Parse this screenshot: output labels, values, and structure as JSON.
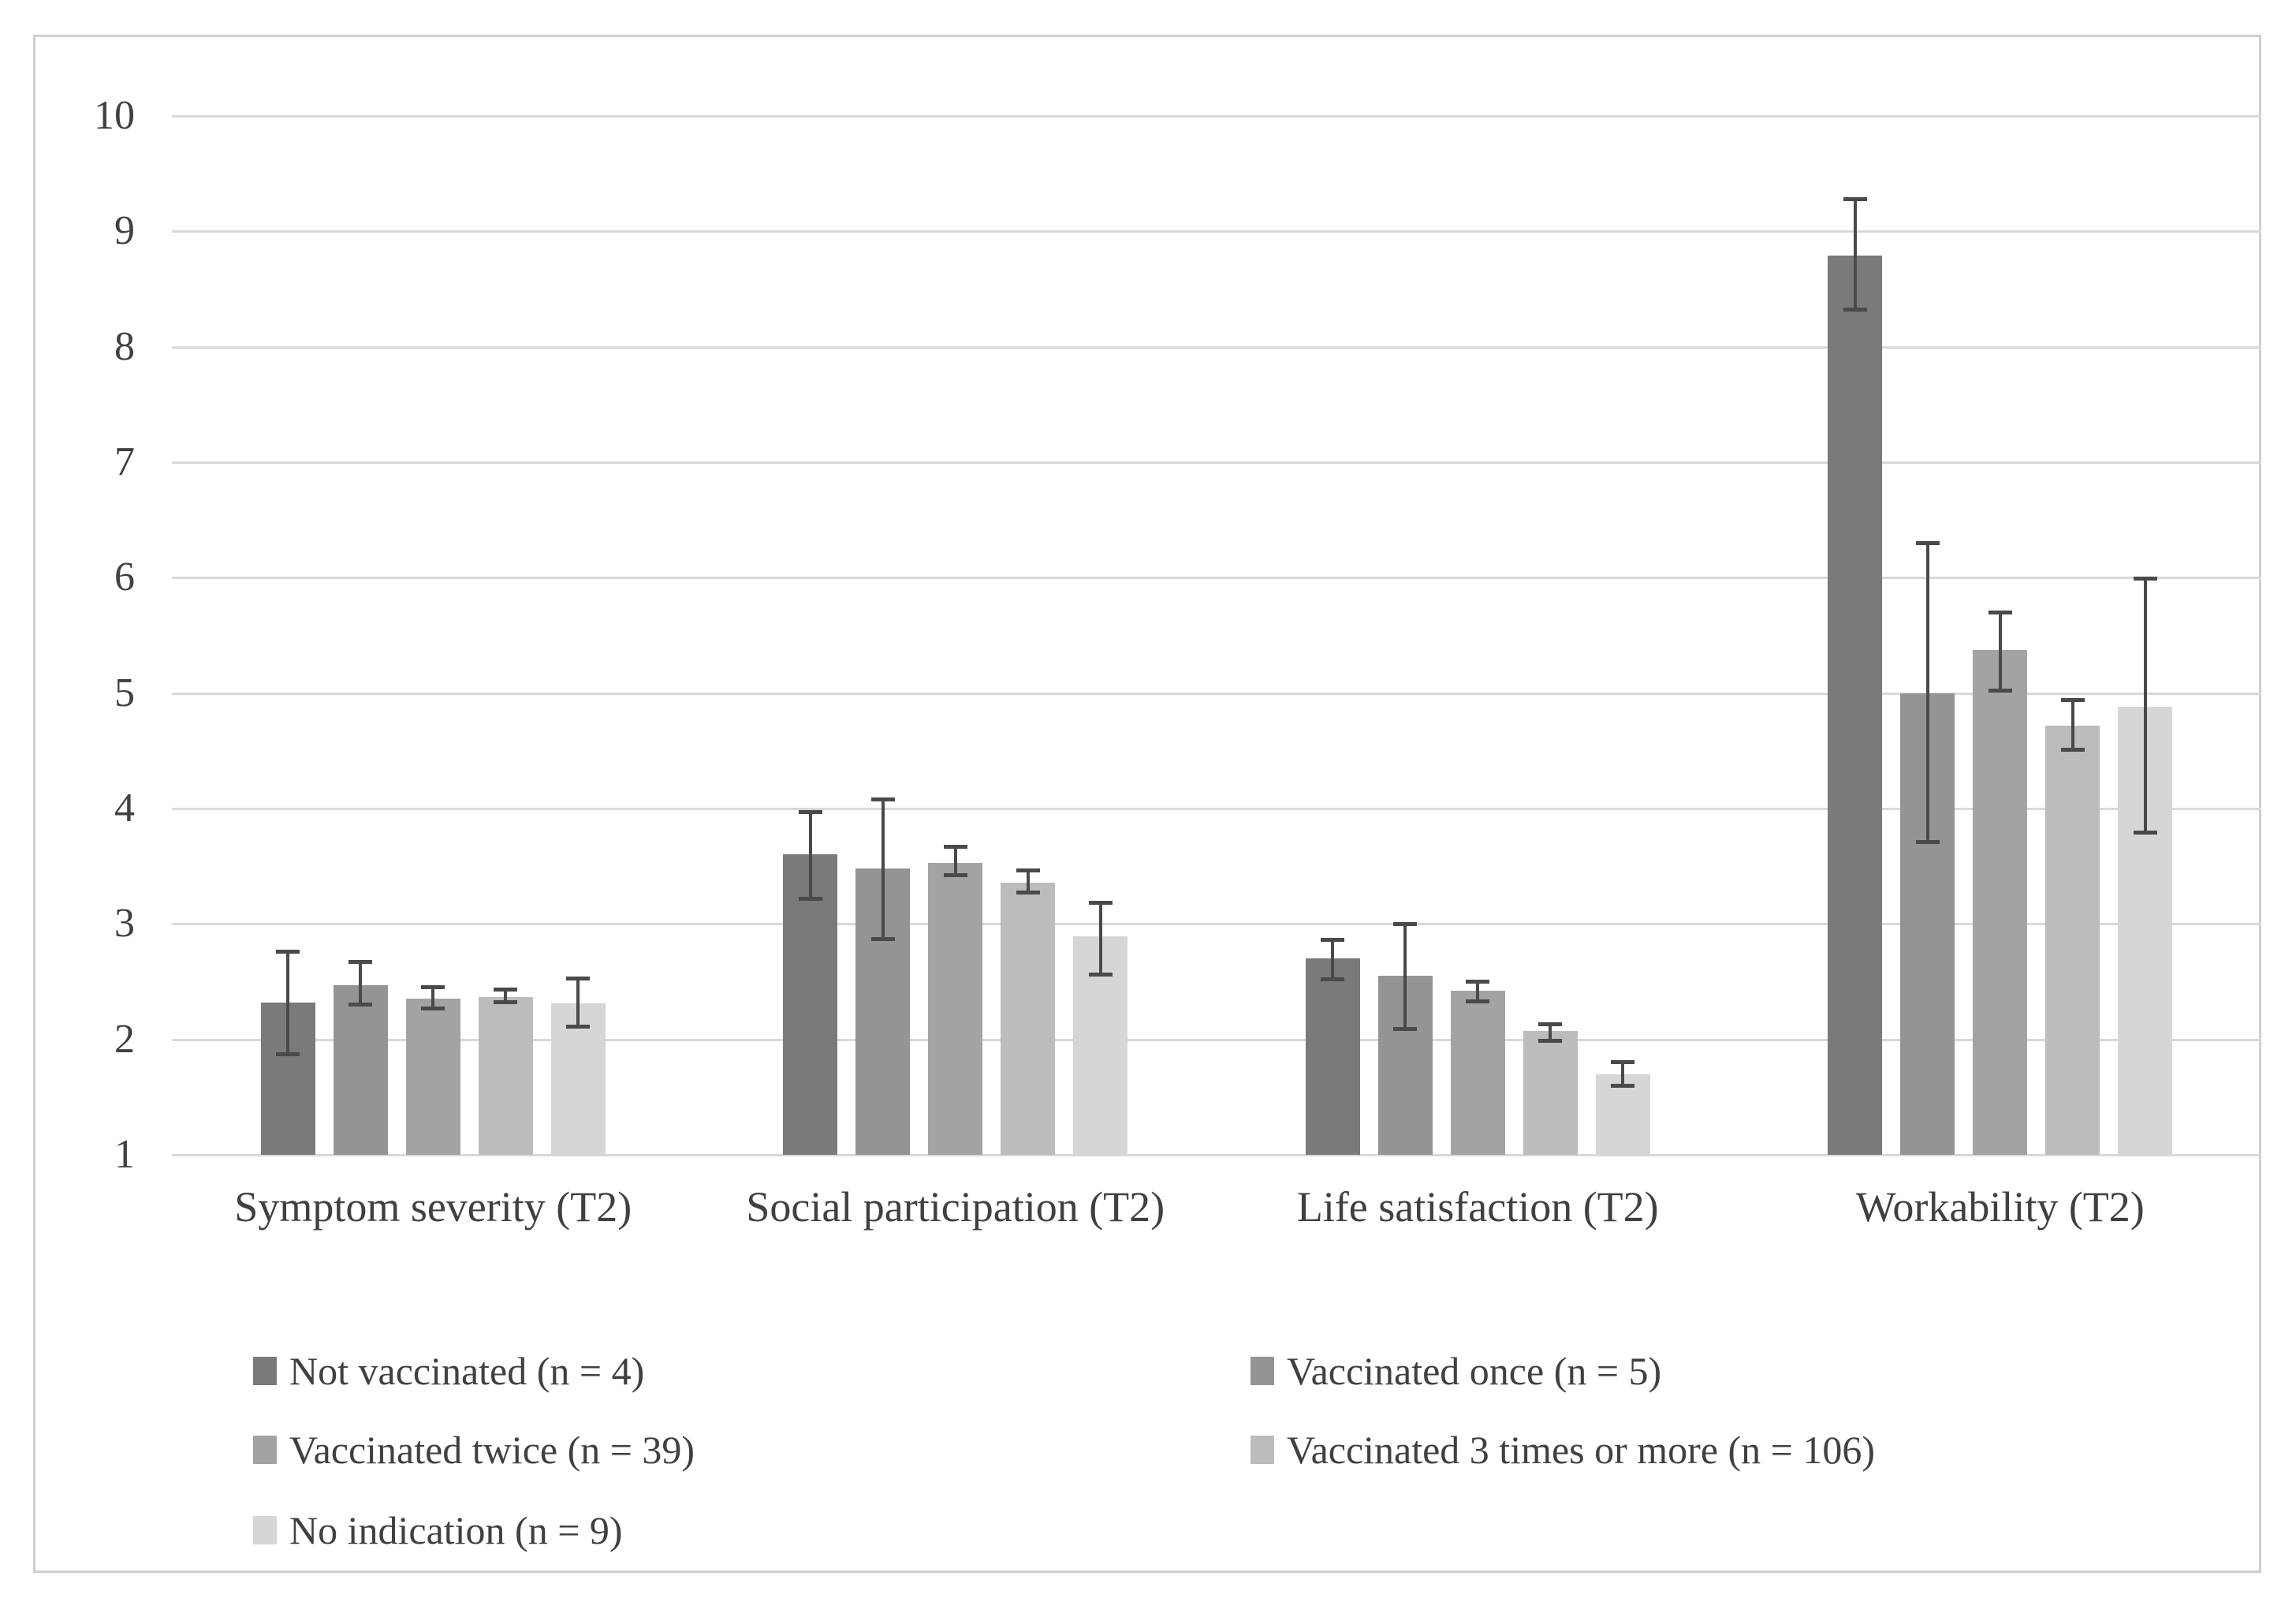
{
  "figure": {
    "background": "#ffffff",
    "frame_border_color": "#cfcfcf",
    "gridline_color": "#d9d9d9",
    "text_color": "#404040",
    "error_bar_color": "#4a4a4a"
  },
  "chart_data": {
    "type": "bar",
    "title": "",
    "xlabel": "",
    "ylabel": "",
    "grid": true,
    "legend_position": "bottom, two columns, three rows",
    "categories": [
      "Symptom severity (T2)",
      "Social participation (T2)",
      "Life satisfaction (T2)",
      "Workability (T2)"
    ],
    "series": [
      {
        "name": "Not vaccinated (n = 4)",
        "color": "#7a7a7a",
        "values": [
          2.32,
          3.6,
          2.7,
          8.79
        ],
        "error_low": [
          1.87,
          3.22,
          2.52,
          8.32
        ],
        "error_high": [
          2.76,
          3.97,
          2.86,
          9.28
        ]
      },
      {
        "name": "Vaccinated once (n = 5)",
        "color": "#949494",
        "values": [
          2.47,
          3.48,
          2.55,
          5.0
        ],
        "error_low": [
          2.3,
          2.87,
          2.09,
          3.71
        ],
        "error_high": [
          2.67,
          4.08,
          3.0,
          6.3
        ]
      },
      {
        "name": "Vaccinated twice (n = 39)",
        "color": "#a3a3a3",
        "values": [
          2.35,
          3.53,
          2.42,
          5.37
        ],
        "error_low": [
          2.27,
          3.42,
          2.33,
          5.02
        ],
        "error_high": [
          2.45,
          3.67,
          2.5,
          5.7
        ]
      },
      {
        "name": "Vaccinated 3 times or more (n = 106)",
        "color": "#bcbcbc",
        "values": [
          2.37,
          3.36,
          2.07,
          4.72
        ],
        "error_low": [
          2.32,
          3.27,
          1.99,
          4.51
        ],
        "error_high": [
          2.43,
          3.46,
          2.13,
          4.94
        ]
      },
      {
        "name": "No indication (n = 9)",
        "color": "#d6d6d6",
        "values": [
          2.31,
          2.89,
          1.7,
          4.88
        ],
        "error_low": [
          2.11,
          2.56,
          1.6,
          3.79
        ],
        "error_high": [
          2.53,
          3.18,
          1.8,
          5.99
        ]
      }
    ],
    "y_axis": {
      "min": 1,
      "max": 10,
      "step": 1,
      "tick_labels": [
        "1",
        "2",
        "3",
        "4",
        "5",
        "6",
        "7",
        "8",
        "9",
        "10"
      ]
    },
    "ylim": [
      1,
      10
    ],
    "legend_rows": [
      [
        0,
        1
      ],
      [
        2,
        3
      ],
      [
        4
      ]
    ]
  }
}
